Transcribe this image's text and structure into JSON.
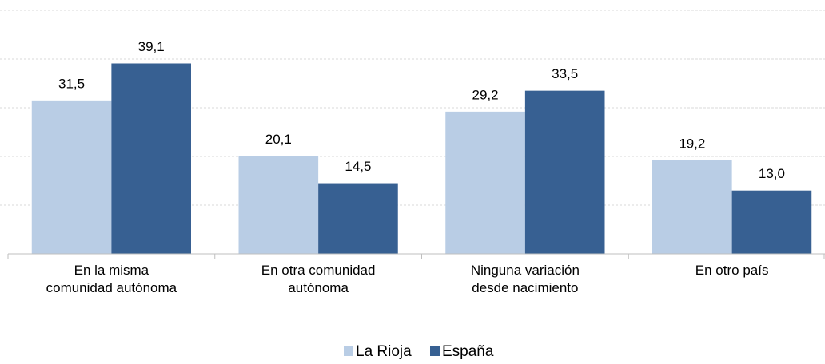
{
  "chart_data": {
    "type": "bar",
    "categories": [
      "En la misma\ncomunidad autónoma",
      "En otra comunidad\nautónoma",
      "Ninguna variación\ndesde nacimiento",
      "En otro país"
    ],
    "series": [
      {
        "name": "La Rioja",
        "color": "#b9cde5",
        "values": [
          31.5,
          20.1,
          29.2,
          19.2
        ],
        "value_labels": [
          "31,5",
          "20,1",
          "29,2",
          "19,2"
        ]
      },
      {
        "name": "España",
        "color": "#376092",
        "values": [
          39.1,
          14.5,
          33.5,
          13.0
        ],
        "value_labels": [
          "39,1",
          "14,5",
          "33,5",
          "13,0"
        ]
      }
    ],
    "ylim": [
      0,
      50
    ],
    "yticks": [
      0,
      10,
      20,
      30,
      40,
      50
    ],
    "grid": true,
    "legend": "bottom"
  }
}
